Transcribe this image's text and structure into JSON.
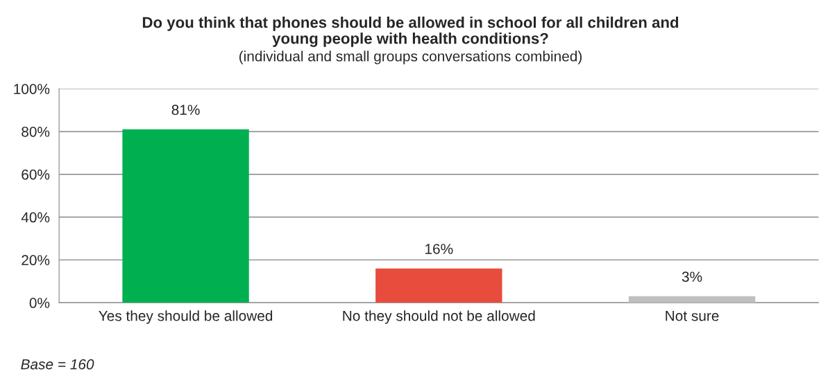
{
  "chart_data": {
    "type": "bar",
    "title": "Do you think that phones should be allowed in school for all children and\nyoung people with health conditions?",
    "subtitle": "(individual and small groups conversations combined)",
    "categories": [
      "Yes they should be allowed",
      "No they should not be allowed",
      "Not sure"
    ],
    "values": [
      81,
      16,
      3
    ],
    "colors": [
      "#00b050",
      "#e84c3d",
      "#bfbfbf"
    ],
    "value_labels": [
      "81%",
      "16%",
      "3%"
    ],
    "ylim": [
      0,
      100
    ],
    "yticks": [
      {
        "value": 0,
        "label": "0%"
      },
      {
        "value": 20,
        "label": "20%"
      },
      {
        "value": 40,
        "label": "40%"
      },
      {
        "value": 60,
        "label": "60%"
      },
      {
        "value": 80,
        "label": "80%"
      },
      {
        "value": 100,
        "label": "100%"
      }
    ],
    "grid": "y",
    "legend": false,
    "annotations": [
      "Base = 160"
    ]
  }
}
